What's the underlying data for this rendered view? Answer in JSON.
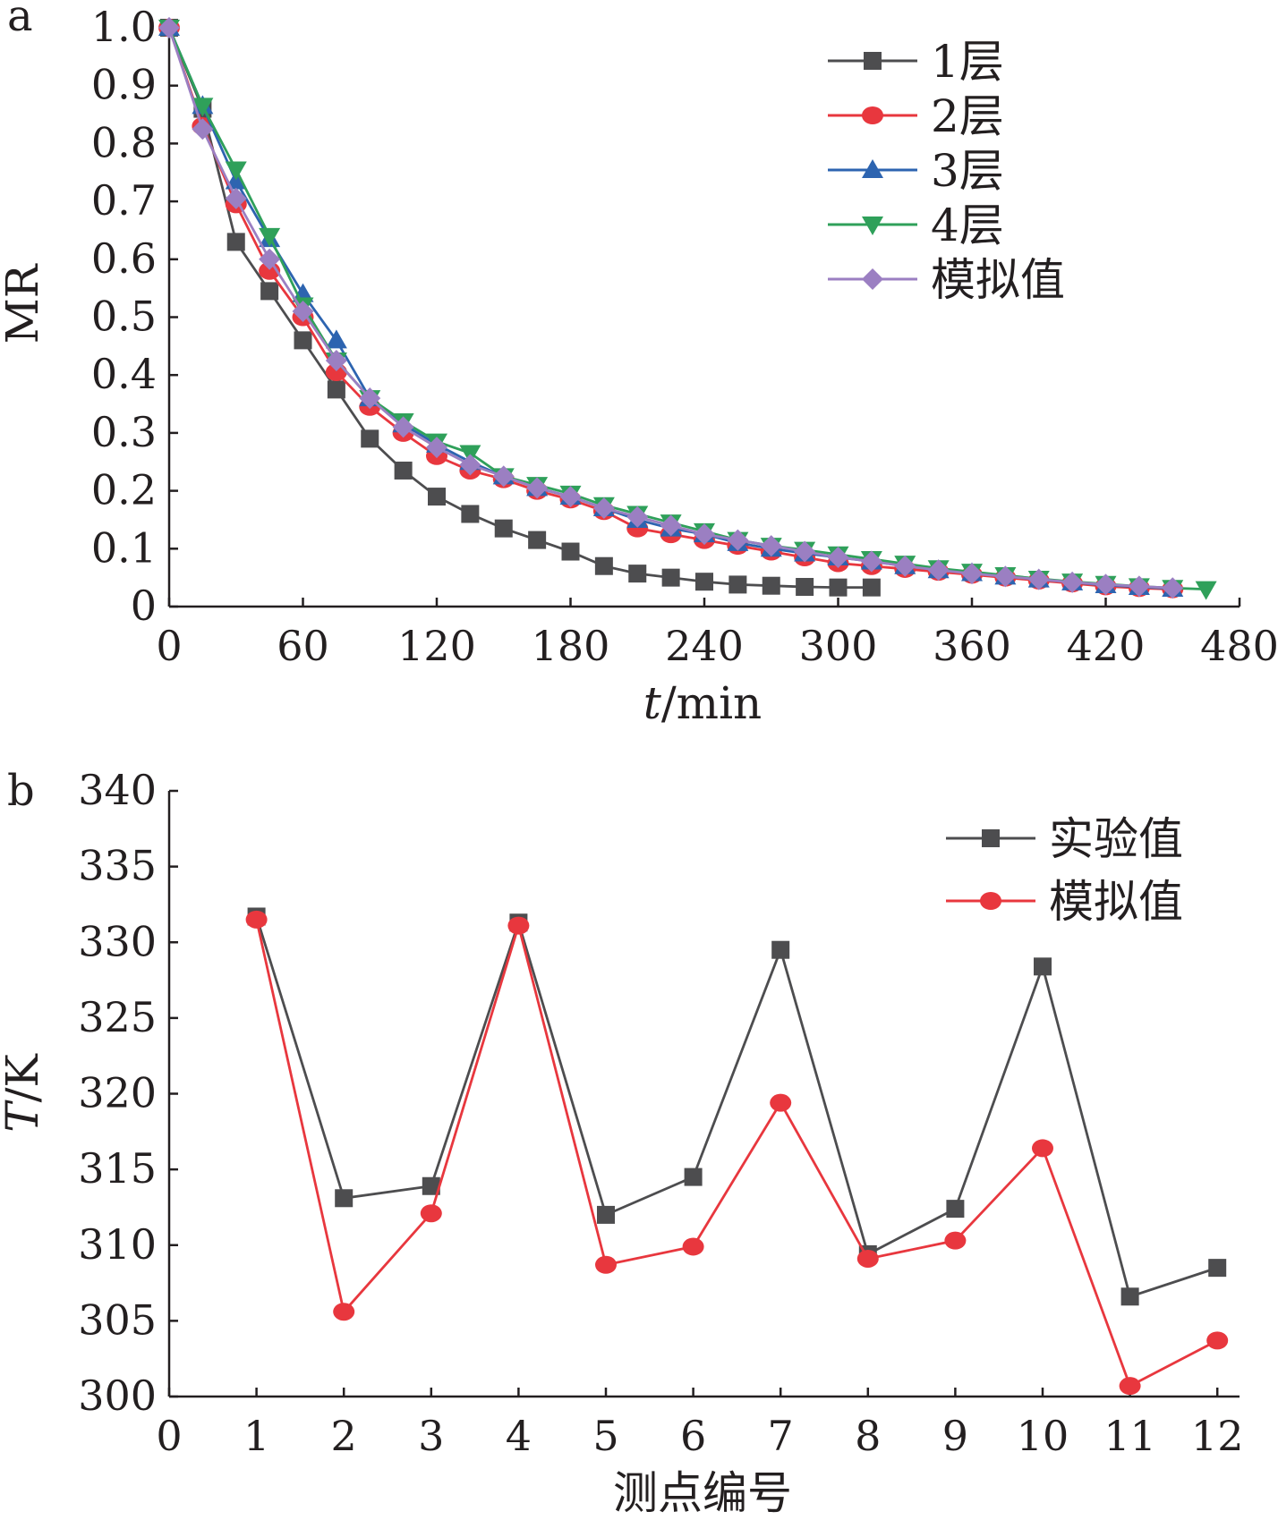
{
  "chart_data": [
    {
      "panel_label": "a",
      "type": "line",
      "xlabel_italic": "t",
      "xlabel_rest": "/min",
      "ylabel": "MR",
      "xlim": [
        0,
        480
      ],
      "ylim": [
        0,
        1.0
      ],
      "x_ticks": [
        "0",
        "60",
        "120",
        "180",
        "240",
        "300",
        "360",
        "420",
        "480"
      ],
      "y_ticks": [
        "0",
        "0.1",
        "0.2",
        "0.3",
        "0.4",
        "0.5",
        "0.6",
        "0.7",
        "0.8",
        "0.9",
        "1.0"
      ],
      "grid": false,
      "legend_position": "top-right",
      "series": [
        {
          "name": "1层",
          "color": "#4d4d4f",
          "marker": "square",
          "x": [
            0,
            15,
            30,
            45,
            60,
            75,
            90,
            105,
            120,
            135,
            150,
            165,
            180,
            195,
            210,
            225,
            240,
            255,
            270,
            285,
            300,
            315
          ],
          "y": [
            1.0,
            0.86,
            0.63,
            0.545,
            0.46,
            0.375,
            0.29,
            0.235,
            0.19,
            0.16,
            0.135,
            0.115,
            0.095,
            0.07,
            0.057,
            0.05,
            0.043,
            0.038,
            0.036,
            0.034,
            0.033,
            0.033
          ]
        },
        {
          "name": "2层",
          "color": "#e8373e",
          "marker": "circle",
          "x": [
            0,
            15,
            30,
            45,
            60,
            75,
            90,
            105,
            120,
            135,
            150,
            165,
            180,
            195,
            210,
            225,
            240,
            255,
            270,
            285,
            300,
            315,
            330,
            345,
            360,
            375,
            390,
            405,
            420,
            435,
            450
          ],
          "y": [
            1.0,
            0.83,
            0.695,
            0.58,
            0.5,
            0.405,
            0.345,
            0.3,
            0.26,
            0.235,
            0.22,
            0.2,
            0.185,
            0.165,
            0.135,
            0.125,
            0.115,
            0.105,
            0.095,
            0.085,
            0.075,
            0.07,
            0.065,
            0.06,
            0.055,
            0.05,
            0.045,
            0.04,
            0.035,
            0.032,
            0.03
          ]
        },
        {
          "name": "3层",
          "color": "#2d64b0",
          "marker": "triangle-up",
          "x": [
            0,
            15,
            30,
            45,
            60,
            75,
            90,
            105,
            120,
            135,
            150,
            165,
            180,
            195,
            210,
            225,
            240,
            255,
            270,
            285,
            300,
            315,
            330,
            345,
            360,
            375,
            390,
            405,
            420,
            435,
            450
          ],
          "y": [
            1.0,
            0.865,
            0.735,
            0.635,
            0.54,
            0.46,
            0.36,
            0.315,
            0.28,
            0.25,
            0.225,
            0.205,
            0.19,
            0.17,
            0.15,
            0.135,
            0.125,
            0.11,
            0.1,
            0.092,
            0.085,
            0.078,
            0.07,
            0.063,
            0.058,
            0.052,
            0.047,
            0.042,
            0.037,
            0.034,
            0.031
          ]
        },
        {
          "name": "4层",
          "color": "#2fa05a",
          "marker": "triangle-down",
          "x": [
            0,
            15,
            30,
            45,
            60,
            75,
            90,
            105,
            120,
            135,
            150,
            165,
            180,
            195,
            210,
            225,
            240,
            255,
            270,
            285,
            300,
            315,
            330,
            345,
            360,
            375,
            390,
            405,
            420,
            435,
            450,
            465
          ],
          "y": [
            1.0,
            0.865,
            0.755,
            0.64,
            0.52,
            0.425,
            0.36,
            0.32,
            0.285,
            0.265,
            0.225,
            0.21,
            0.195,
            0.175,
            0.16,
            0.145,
            0.13,
            0.115,
            0.105,
            0.098,
            0.09,
            0.082,
            0.074,
            0.066,
            0.06,
            0.054,
            0.048,
            0.043,
            0.039,
            0.035,
            0.032,
            0.03
          ]
        },
        {
          "name": "模拟值",
          "color": "#9b7fc2",
          "marker": "diamond",
          "x": [
            0,
            15,
            30,
            45,
            60,
            75,
            90,
            105,
            120,
            135,
            150,
            165,
            180,
            195,
            210,
            225,
            240,
            255,
            270,
            285,
            300,
            315,
            330,
            345,
            360,
            375,
            390,
            405,
            420,
            435,
            450
          ],
          "y": [
            1.0,
            0.825,
            0.705,
            0.6,
            0.51,
            0.425,
            0.36,
            0.31,
            0.275,
            0.245,
            0.225,
            0.205,
            0.19,
            0.17,
            0.155,
            0.14,
            0.125,
            0.115,
            0.105,
            0.095,
            0.085,
            0.078,
            0.07,
            0.063,
            0.057,
            0.052,
            0.047,
            0.042,
            0.038,
            0.035,
            0.032
          ]
        }
      ]
    },
    {
      "panel_label": "b",
      "type": "line",
      "xlabel": "测点编号",
      "ylabel_italic": "T",
      "ylabel_rest": "/K",
      "xlim": [
        0,
        12.5
      ],
      "ylim": [
        300,
        340
      ],
      "x_ticks": [
        "0",
        "1",
        "2",
        "3",
        "4",
        "5",
        "6",
        "7",
        "8",
        "9",
        "10",
        "11",
        "12"
      ],
      "y_ticks": [
        "300",
        "305",
        "310",
        "315",
        "320",
        "325",
        "330",
        "335",
        "340"
      ],
      "grid": false,
      "legend_position": "top-right",
      "series": [
        {
          "name": "实验值",
          "color": "#4d4d4f",
          "marker": "square",
          "x": [
            1,
            2,
            3,
            4,
            5,
            6,
            7,
            8,
            9,
            10,
            11,
            12
          ],
          "y": [
            331.7,
            313.1,
            313.9,
            331.3,
            312.0,
            314.5,
            329.5,
            309.4,
            312.4,
            328.4,
            306.6,
            308.5
          ]
        },
        {
          "name": "模拟值",
          "color": "#e8373e",
          "marker": "circle",
          "x": [
            1,
            2,
            3,
            4,
            5,
            6,
            7,
            8,
            9,
            10,
            11,
            12
          ],
          "y": [
            331.5,
            305.6,
            312.1,
            331.1,
            308.7,
            309.9,
            319.4,
            309.1,
            310.3,
            316.4,
            300.7,
            303.7
          ]
        }
      ]
    }
  ]
}
